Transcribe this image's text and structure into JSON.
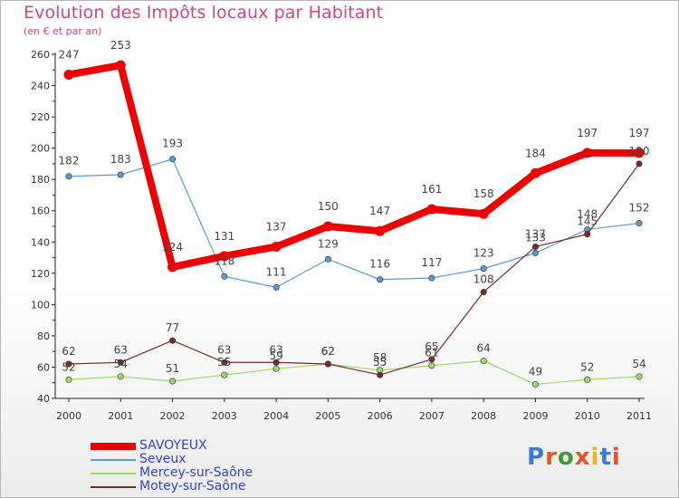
{
  "title": "Evolution des Impôts locaux par Habitant",
  "subtitle": "(en € et par an)",
  "logo": "Proxiti",
  "chart_data": {
    "type": "line",
    "title": "Evolution des Impôts locaux par Habitant",
    "subtitle": "(en € et par an)",
    "xlabel": "",
    "ylabel": "",
    "x": [
      "2000",
      "2001",
      "2002",
      "2003",
      "2004",
      "2005",
      "2006",
      "2007",
      "2008",
      "2009",
      "2010",
      "2011"
    ],
    "ylim": [
      40,
      260
    ],
    "yticks": [
      40,
      60,
      80,
      100,
      120,
      140,
      160,
      180,
      200,
      220,
      240,
      260
    ],
    "grid": false,
    "legend_position": "bottom-left",
    "series": [
      {
        "name": "SAVOYEUX",
        "values": [
          247,
          253,
          124,
          131,
          137,
          150,
          147,
          161,
          158,
          184,
          197,
          197
        ],
        "color": "#ee0000",
        "labels": [
          "247",
          "253",
          "124",
          "131",
          "137",
          "150",
          "147",
          "161",
          "158",
          "184",
          "197",
          "197"
        ]
      },
      {
        "name": "Seveux",
        "values": [
          182,
          183,
          193,
          118,
          111,
          129,
          116,
          117,
          123,
          133,
          148,
          152
        ],
        "color": "#5b9bd5",
        "labels": [
          "182",
          "183",
          "193",
          "118",
          "111",
          "129",
          "116",
          "117",
          "123",
          "133",
          "148",
          "152"
        ]
      },
      {
        "name": "Mercey-sur-Saône",
        "values": [
          52,
          54,
          51,
          55,
          59,
          62,
          58,
          61,
          64,
          49,
          52,
          54
        ],
        "color": "#99dd66",
        "labels": [
          "52",
          "54",
          "51",
          "55",
          "59",
          "62",
          "58",
          "61",
          "64",
          "49",
          "52",
          "54"
        ]
      },
      {
        "name": "Motey-sur-Saône",
        "values": [
          62,
          63,
          77,
          63,
          63,
          62,
          55,
          65,
          108,
          137,
          145,
          190
        ],
        "color": "#7a2a2a",
        "labels": [
          "62",
          "63",
          "77",
          "63",
          "63",
          "62",
          "55",
          "65",
          "108",
          "137",
          "145",
          "190"
        ]
      }
    ]
  }
}
